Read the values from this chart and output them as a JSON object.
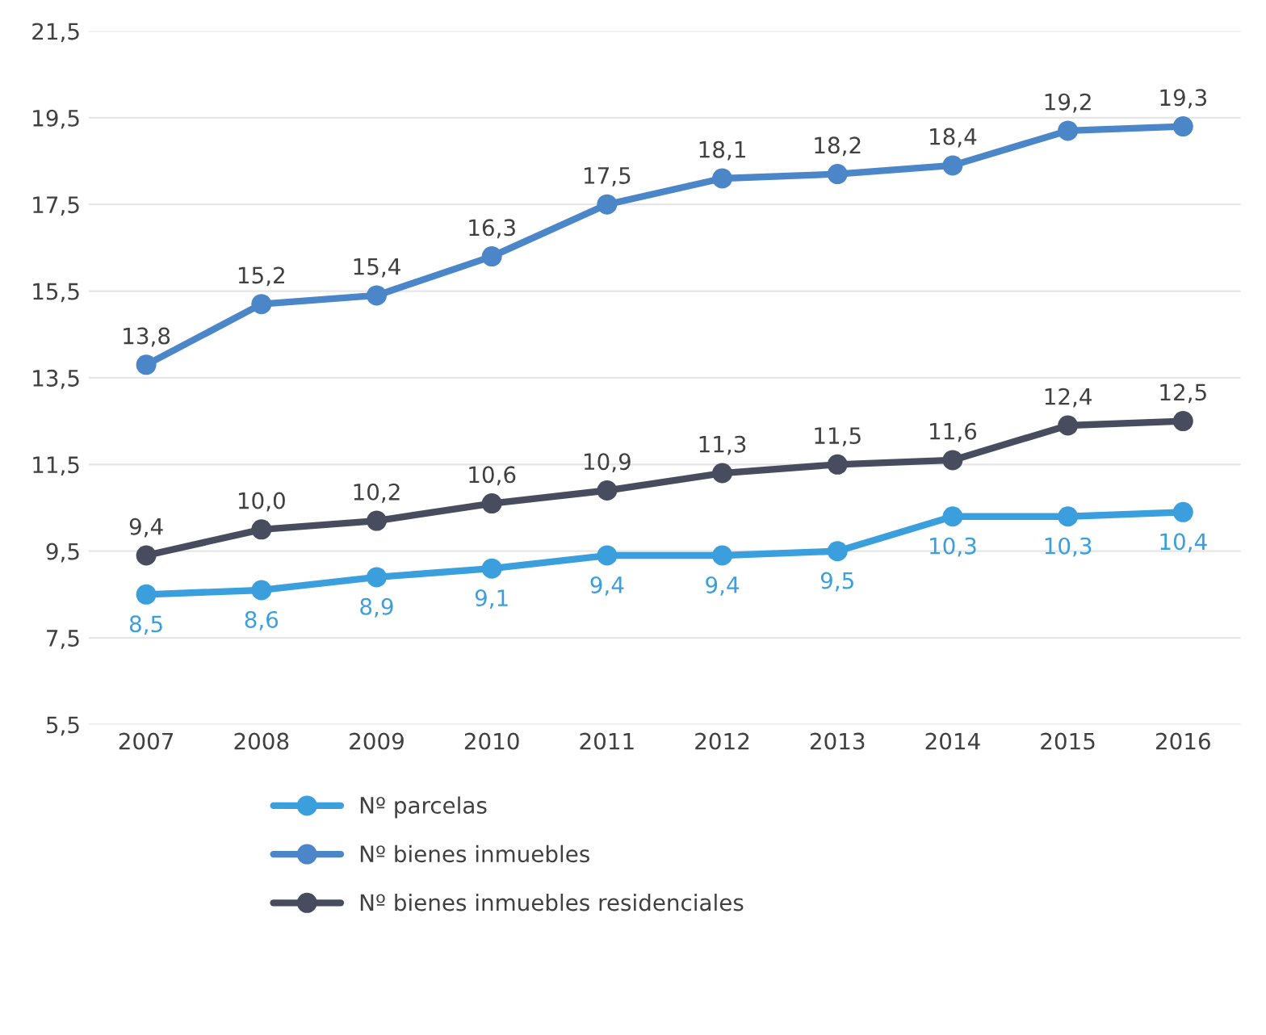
{
  "chart_data": {
    "type": "line",
    "categories": [
      "2007",
      "2008",
      "2009",
      "2010",
      "2011",
      "2012",
      "2013",
      "2014",
      "2015",
      "2016"
    ],
    "series": [
      {
        "name": "Nº parcelas",
        "color": "#3a9fdc",
        "values": [
          8.5,
          8.6,
          8.9,
          9.1,
          9.4,
          9.4,
          9.5,
          10.3,
          10.3,
          10.4
        ],
        "value_labels": [
          "8,5",
          "8,6",
          "8,9",
          "9,1",
          "9,4",
          "9,4",
          "9,5",
          "10,3",
          "10,3",
          "10,4"
        ]
      },
      {
        "name": "Nº bienes inmuebles",
        "color": "#4a86c8",
        "values": [
          13.8,
          15.2,
          15.4,
          16.3,
          17.5,
          18.1,
          18.2,
          18.4,
          19.2,
          19.3
        ],
        "value_labels": [
          "13,8",
          "15,2",
          "15,4",
          "16,3",
          "17,5",
          "18,1",
          "18,2",
          "18,4",
          "19,2",
          "19,3"
        ]
      },
      {
        "name": "Nº bienes inmuebles residenciales",
        "color": "#474c5e",
        "values": [
          9.4,
          10.0,
          10.2,
          10.6,
          10.9,
          11.3,
          11.5,
          11.6,
          12.4,
          12.5
        ],
        "value_labels": [
          "9,4",
          "10,0",
          "10,2",
          "10,6",
          "10,9",
          "11,3",
          "11,5",
          "11,6",
          "12,4",
          "12,5"
        ]
      }
    ],
    "ylim": [
      5.5,
      21.5
    ],
    "yticks": [
      {
        "value": 5.5,
        "label": "5,5"
      },
      {
        "value": 7.5,
        "label": "7,5"
      },
      {
        "value": 9.5,
        "label": "9,5"
      },
      {
        "value": 11.5,
        "label": "11,5"
      },
      {
        "value": 13.5,
        "label": "13,5"
      },
      {
        "value": 15.5,
        "label": "15,5"
      },
      {
        "value": 17.5,
        "label": "17,5"
      },
      {
        "value": 19.5,
        "label": "19,5"
      },
      {
        "value": 21.5,
        "label": "21,5"
      }
    ],
    "grid": "y",
    "legend": "bottom",
    "marker": "circle",
    "line_style": "solid"
  }
}
